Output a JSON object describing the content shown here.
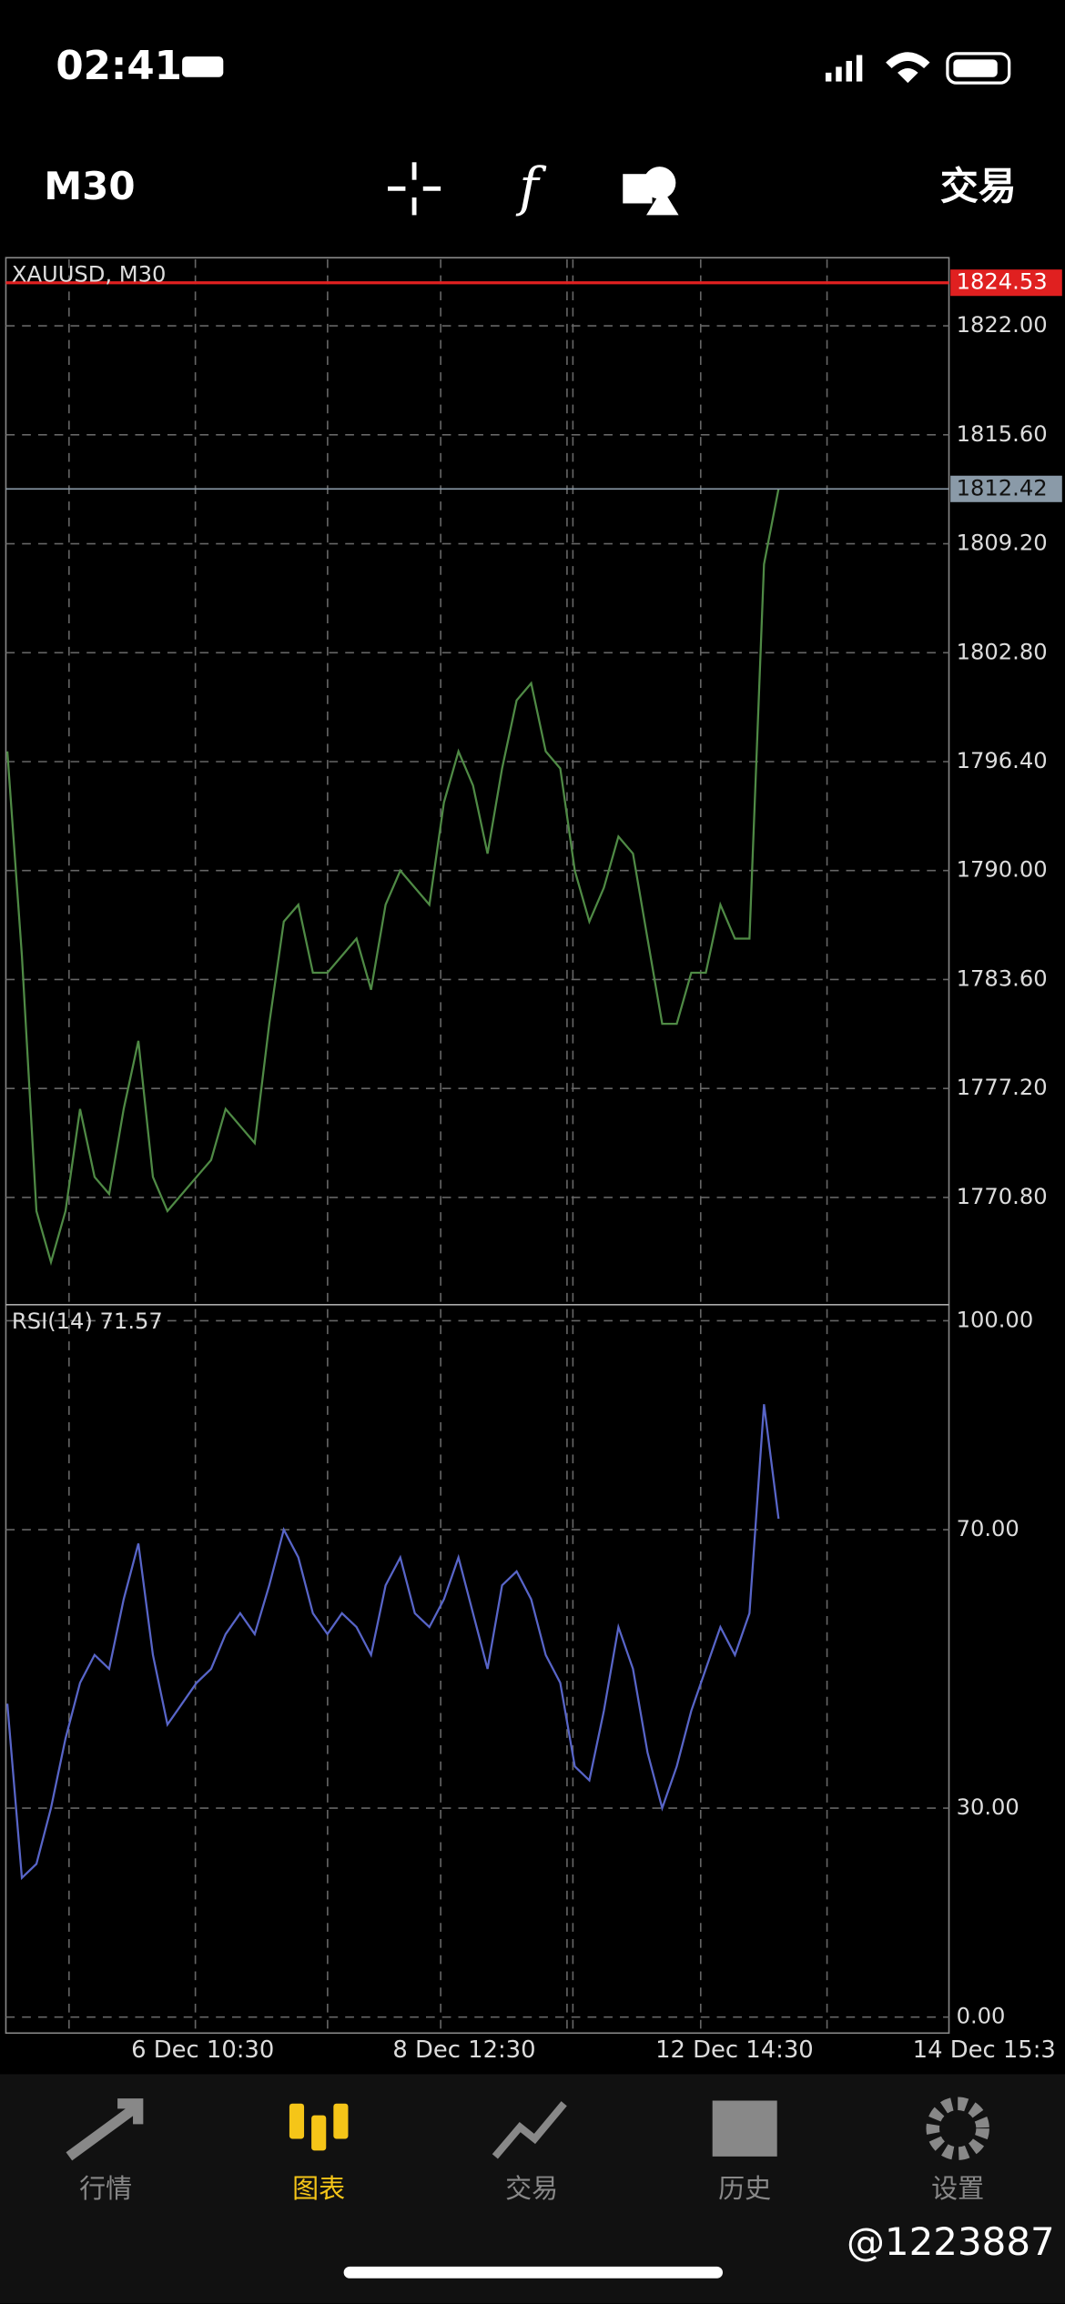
{
  "status_bar": {
    "time": "02:41"
  },
  "toolbar": {
    "timeframe": "M30",
    "trade": "交易"
  },
  "chart_data": [
    {
      "type": "line",
      "title": "XAUUSD, M30",
      "color": "#4f8a45",
      "values": [
        1797,
        1785,
        1770,
        1767,
        1770,
        1776,
        1772,
        1771,
        1776,
        1780,
        1772,
        1770,
        1771,
        1772,
        1773,
        1776,
        1775,
        1774,
        1781,
        1787,
        1788,
        1784,
        1784,
        1785,
        1786,
        1783,
        1788,
        1790,
        1789,
        1788,
        1794,
        1797,
        1795,
        1791,
        1796,
        1800,
        1801,
        1797,
        1796,
        1790,
        1787,
        1789,
        1792,
        1791,
        1786,
        1781,
        1781,
        1784,
        1784,
        1788,
        1786,
        1786,
        1808,
        1812.42
      ],
      "ylim": [
        1764.5,
        1826.0
      ],
      "yticks": [
        {
          "value": 1822,
          "label": "1822.00"
        },
        {
          "value": 1815.6,
          "label": "1815.60"
        },
        {
          "value": 1809.2,
          "label": "1809.20"
        },
        {
          "value": 1802.8,
          "label": "1802.80"
        },
        {
          "value": 1796.4,
          "label": "1796.40"
        },
        {
          "value": 1790,
          "label": "1790.00"
        },
        {
          "value": 1783.6,
          "label": "1783.60"
        },
        {
          "value": 1777.2,
          "label": "1777.20"
        },
        {
          "value": 1770.8,
          "label": "1770.80"
        }
      ],
      "grid": true,
      "price_lines": [
        {
          "value": 1824.53,
          "color": "#e02020"
        },
        {
          "value": 1812.42,
          "color": "#8a9aa8"
        }
      ]
    },
    {
      "type": "line",
      "title": "RSI(14) 71.57",
      "color": "#5865c8",
      "values": [
        45,
        20,
        22,
        30,
        40,
        48,
        52,
        50,
        60,
        68,
        52,
        42,
        45,
        48,
        50,
        55,
        58,
        55,
        62,
        70,
        66,
        58,
        55,
        58,
        56,
        52,
        62,
        66,
        58,
        56,
        60,
        66,
        58,
        50,
        62,
        64,
        60,
        52,
        48,
        36,
        34,
        44,
        56,
        50,
        38,
        30,
        36,
        44,
        50,
        56,
        52,
        58,
        88,
        71.57
      ],
      "ylim": [
        -2.3,
        102.3
      ],
      "yticks": [
        {
          "value": 100,
          "label": "100.00"
        },
        {
          "value": 70,
          "label": "70.00"
        },
        {
          "value": 30,
          "label": "30.00"
        },
        {
          "value": 0,
          "label": "0.00"
        }
      ],
      "grid": true,
      "xtick_labels": [
        "6 Dec 10:30",
        "8 Dec 12:30",
        "12 Dec 14:30",
        "14 Dec 15:3"
      ]
    }
  ],
  "tab_bar": {
    "tabs": [
      "行情",
      "图表",
      "交易",
      "历史",
      "设置"
    ],
    "active": 1
  },
  "watermark": "@1223887"
}
